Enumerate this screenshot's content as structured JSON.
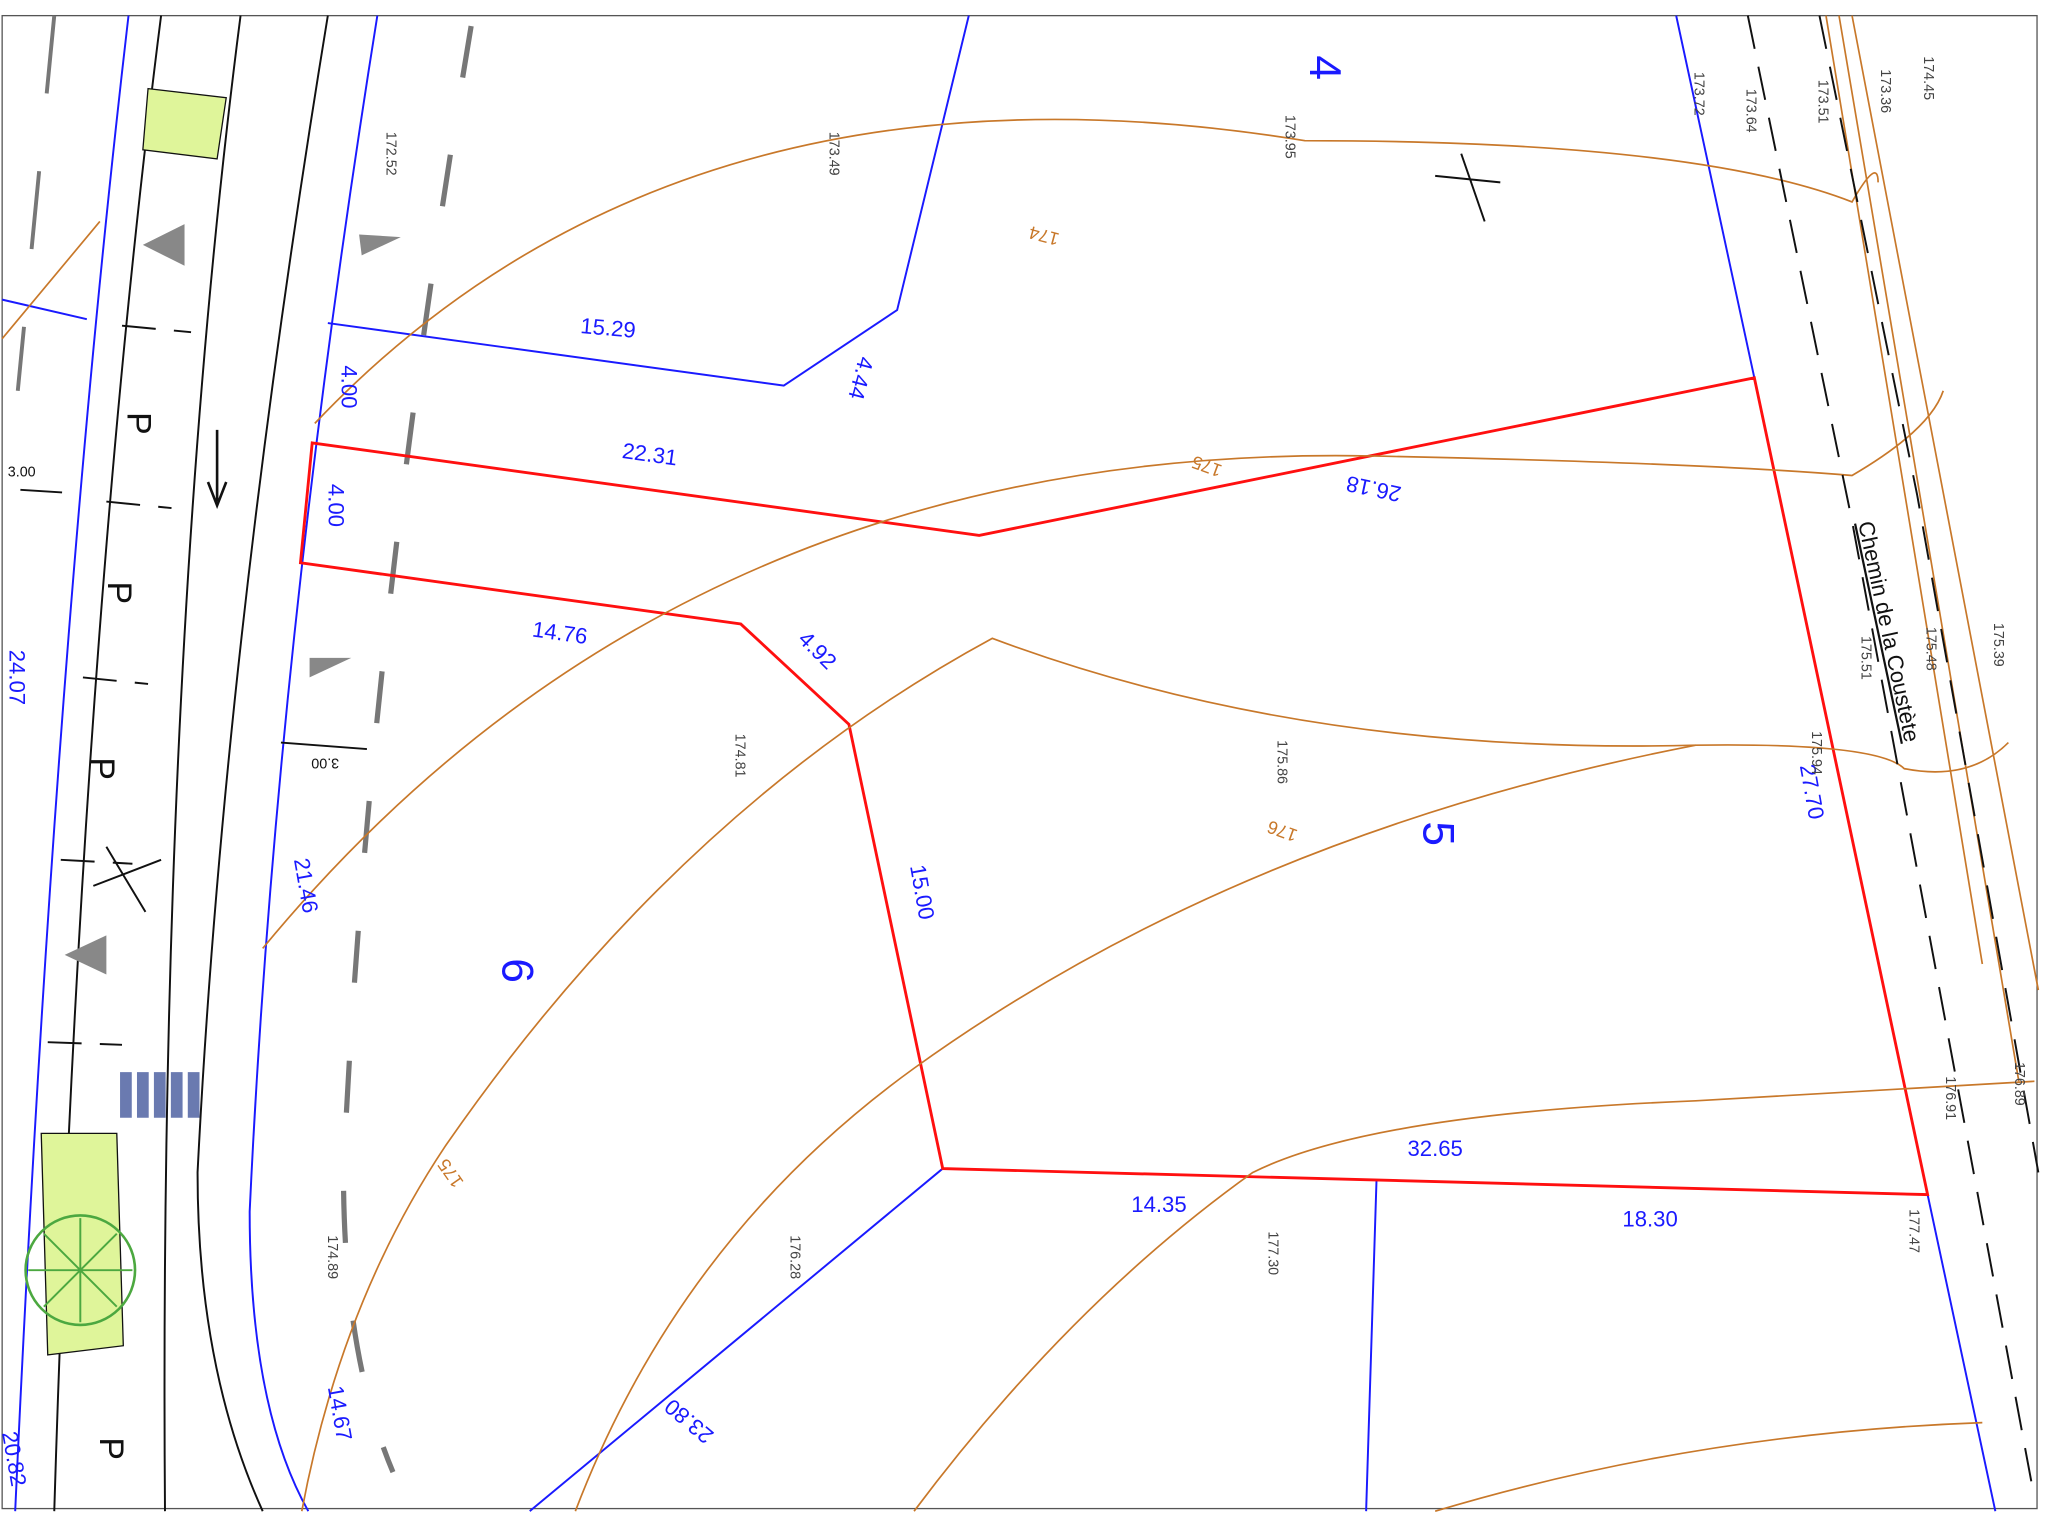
{
  "lots": [
    "4",
    "5",
    "6"
  ],
  "dimensions": [
    "15.29",
    "4.44",
    "4.00",
    "22.31",
    "4.00",
    "26.18",
    "14.76",
    "4.92",
    "24.07",
    "15.00",
    "21.46",
    "27.70",
    "32.65",
    "14.35",
    "18.30",
    "23.80",
    "14.67",
    "20.82"
  ],
  "elevations": [
    "172.52",
    "173.49",
    "173.95",
    "173.72",
    "173.64",
    "173.51",
    "173.36",
    "174.45",
    "174.81",
    "175.86",
    "175.51",
    "175.48",
    "175.39",
    "175.94",
    "176.91",
    "176.89",
    "174.89",
    "176.28",
    "177.30",
    "177.47"
  ],
  "contours": [
    "174",
    "175",
    "176",
    "175"
  ],
  "street": "Chemin de la Coustète",
  "parking": [
    "P",
    "P",
    "P",
    "P"
  ],
  "widths": [
    "3.00",
    "3.00"
  ]
}
